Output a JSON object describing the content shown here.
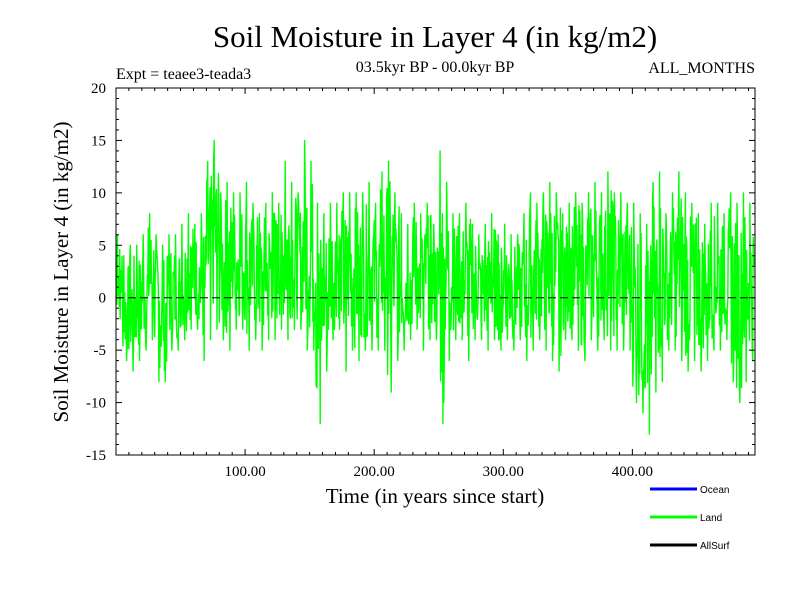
{
  "chart_data": {
    "type": "line",
    "title": "Soil Moisture in Layer 4 (in kg/m2)",
    "subtitle_left": "Expt = teaee3-teada3",
    "subtitle_center": "03.5kyr BP - 00.0kyr BP",
    "subtitle_right": "ALL_MONTHS",
    "xlabel": "Time (in years since start)",
    "ylabel": "Soil Moisture in Layer 4 (in kg/m2)",
    "xlim": [
      0,
      495
    ],
    "ylim": [
      -15,
      20
    ],
    "xticks": [
      100,
      200,
      300,
      400
    ],
    "xtick_labels": [
      "100.00",
      "200.00",
      "300.00",
      "400.00"
    ],
    "yticks": [
      -15,
      -10,
      -5,
      0,
      5,
      10,
      15,
      20
    ],
    "ytick_labels": [
      "-15",
      "-10",
      "-5",
      "0",
      "5",
      "10",
      "15",
      "20"
    ],
    "zero_line": 0,
    "legend_position": "bottom-right",
    "series": [
      {
        "name": "Ocean",
        "color": "#0000ff",
        "values": []
      },
      {
        "name": "Land",
        "color": "#00ff00",
        "x_step": 5,
        "x_start": 0,
        "min": [
          -2,
          -6,
          -7,
          -6,
          -5,
          -4,
          -8,
          -8,
          -5,
          -5,
          -4,
          -3,
          -3,
          -6,
          -4,
          -3,
          -4,
          -5,
          -3,
          -3,
          -5,
          -4,
          -5,
          -4,
          -4,
          -3,
          -4,
          -3,
          -3,
          -5,
          -5,
          -12,
          -7,
          -4,
          -3,
          -7,
          -5,
          -6,
          -5,
          -5,
          -5,
          -5,
          -9,
          -6,
          -5,
          -4,
          -3,
          -5,
          -4,
          -4,
          -12,
          -6,
          -4,
          -4,
          -6,
          -4,
          -4,
          -5,
          -4,
          -5,
          -4,
          -5,
          -4,
          -6,
          -5,
          -4,
          -5,
          -6,
          -7,
          -4,
          -4,
          -5,
          -6,
          -4,
          -5,
          -4,
          -5,
          -5,
          -5,
          -5,
          -10,
          -11,
          -13,
          -9,
          -8,
          -5,
          -5,
          -6,
          -7,
          -6,
          -7,
          -6,
          -5,
          -5,
          -4,
          -8,
          -10,
          -8,
          -6
        ],
        "max": [
          6,
          4,
          5,
          5,
          6,
          8,
          6,
          5,
          6,
          6,
          7,
          8,
          7,
          8,
          13,
          15,
          10,
          11,
          10,
          10,
          11,
          9,
          8,
          9,
          10,
          9,
          13,
          11,
          10,
          15,
          13,
          9,
          8,
          9,
          9,
          10,
          10,
          10,
          10,
          11,
          9,
          12,
          13,
          10,
          8,
          7,
          9,
          8,
          9,
          7,
          14,
          11,
          8,
          8,
          9,
          7,
          6,
          7,
          8,
          6,
          7,
          6,
          6,
          8,
          10,
          9,
          10,
          11,
          10,
          8,
          9,
          10,
          9,
          10,
          11,
          10,
          12,
          10,
          10,
          9,
          9,
          8,
          7,
          11,
          12,
          8,
          10,
          12,
          10,
          9,
          8,
          7,
          9,
          9,
          8,
          10,
          9,
          10,
          9
        ]
      },
      {
        "name": "AllSurf",
        "color": "#000000",
        "values": []
      }
    ]
  }
}
